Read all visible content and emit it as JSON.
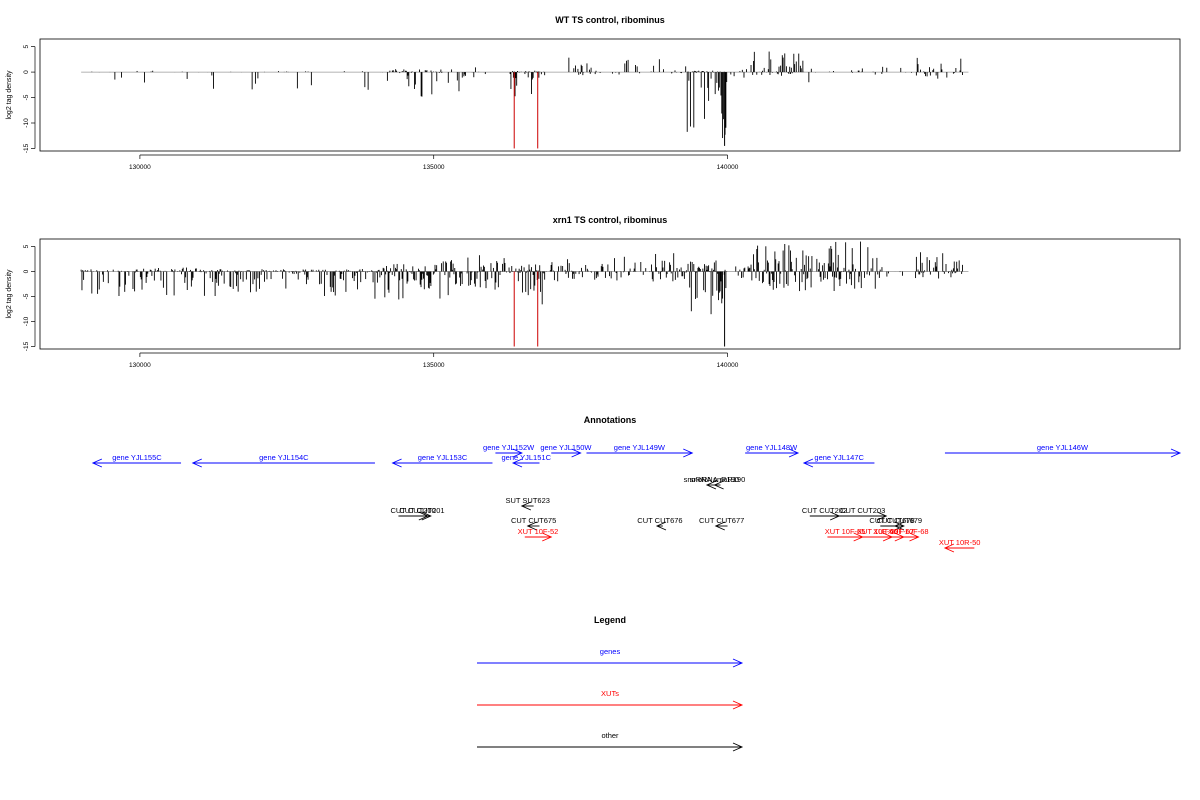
{
  "plots": [
    {
      "title": "WT TS control, ribominus",
      "ylabel": "log2 tag density",
      "xticks": [
        130000,
        135000,
        140000
      ],
      "yticks": [
        5,
        0,
        -5,
        -10,
        -15
      ],
      "ylim": [
        -15.5,
        6.5
      ],
      "xlim": [
        128300,
        147700
      ],
      "highlight_x": [
        136370,
        136770
      ],
      "regions": [
        [
          129000,
          130300,
          -4.5,
          0.3,
          0.09
        ],
        [
          130300,
          131000,
          -1.5,
          0.1,
          0.03
        ],
        [
          131000,
          134100,
          -3.5,
          0.2,
          0.12
        ],
        [
          134100,
          135500,
          -5,
          0.6,
          0.6
        ],
        [
          135500,
          135900,
          -1.5,
          1.0,
          0.3
        ],
        [
          136300,
          136900,
          -5,
          0.3,
          0.85
        ],
        [
          137300,
          139300,
          -0.6,
          3.2,
          0.3
        ],
        [
          139300,
          140000,
          -13.5,
          0.3,
          0.9
        ],
        [
          140000,
          140400,
          -1.5,
          0.6,
          0.15
        ],
        [
          140400,
          141300,
          -0.8,
          4.2,
          0.7
        ],
        [
          141300,
          142500,
          -3.5,
          0.8,
          0.2
        ],
        [
          142500,
          143200,
          -1.0,
          1.5,
          0.1
        ],
        [
          143200,
          144000,
          -1.5,
          2.8,
          0.45
        ]
      ],
      "deep_spikes": [
        [
          136370,
          -15
        ],
        [
          136770,
          -15
        ],
        [
          139950,
          -14.5
        ]
      ]
    },
    {
      "title": "xrn1 TS control, ribominus",
      "ylabel": "log2 tag density",
      "xticks": [
        130000,
        135000,
        140000
      ],
      "yticks": [
        5,
        0,
        -5,
        -10,
        -15
      ],
      "ylim": [
        -15.5,
        6.5
      ],
      "xlim": [
        128300,
        147700
      ],
      "highlight_x": [
        136370,
        136770
      ],
      "regions": [
        [
          129000,
          131000,
          -5,
          0.8,
          0.6
        ],
        [
          131000,
          134000,
          -5,
          0.5,
          0.7
        ],
        [
          134000,
          135400,
          -6,
          2.5,
          0.85
        ],
        [
          135400,
          136300,
          -4,
          3.8,
          0.6
        ],
        [
          136300,
          136900,
          -7.5,
          1.5,
          0.9
        ],
        [
          136900,
          139300,
          -2,
          4.0,
          0.6
        ],
        [
          139300,
          140000,
          -13,
          2.5,
          0.9
        ],
        [
          140000,
          140400,
          -2,
          1.5,
          0.4
        ],
        [
          140400,
          142600,
          -4,
          6.0,
          0.75
        ],
        [
          142600,
          143200,
          -1.5,
          2.0,
          0.2
        ],
        [
          143200,
          144000,
          -1.5,
          4.0,
          0.6
        ]
      ],
      "deep_spikes": [
        [
          136370,
          -15
        ],
        [
          136770,
          -15
        ],
        [
          139950,
          -15
        ]
      ]
    }
  ],
  "annotations_title": "Annotations",
  "features": [
    {
      "label": "gene YJL155C",
      "type": "gene",
      "start": 130700,
      "end": 129200,
      "row": 0
    },
    {
      "label": "gene YJL154C",
      "type": "gene",
      "start": 134000,
      "end": 130900,
      "row": 0
    },
    {
      "label": "gene YJL153C",
      "type": "gene",
      "start": 136000,
      "end": 134300,
      "row": 0
    },
    {
      "label": "gene YJL152W",
      "type": "gene",
      "start": 136050,
      "end": 136500,
      "row": -1
    },
    {
      "label": "gene YJL151C",
      "type": "gene",
      "start": 136800,
      "end": 136350,
      "row": 0
    },
    {
      "label": "gene YJL150W",
      "type": "gene",
      "start": 137000,
      "end": 137500,
      "row": -1
    },
    {
      "label": "gene YJL149W",
      "type": "gene",
      "start": 137600,
      "end": 139400,
      "row": -1
    },
    {
      "label": "gene YJL148W",
      "type": "gene",
      "start": 140300,
      "end": 141200,
      "row": -1
    },
    {
      "label": "gene YJL147C",
      "type": "gene",
      "start": 142500,
      "end": 141300,
      "row": 0
    },
    {
      "label": "gene YJL146W",
      "type": "gene",
      "start": 143700,
      "end": 147700,
      "row": -1
    },
    {
      "label": "snoRNA snR190",
      "type": "other",
      "start": 139800,
      "end": 139650,
      "row": 1
    },
    {
      "label": "snoRNA snR190",
      "type": "other",
      "start": 139880,
      "end": 139780,
      "row": 1
    },
    {
      "label": "SUT SUT623",
      "type": "other",
      "start": 136700,
      "end": 136500,
      "row": 2
    },
    {
      "label": "CUT CUT200",
      "type": "other",
      "start": 134400,
      "end": 134900,
      "row": 3
    },
    {
      "label": "CUT CUT201",
      "type": "other",
      "start": 134650,
      "end": 134950,
      "row": 3
    },
    {
      "label": "CUT CUT675",
      "type": "other",
      "start": 136800,
      "end": 136600,
      "row": 4
    },
    {
      "label": "CUT CUT676",
      "type": "other",
      "start": 138900,
      "end": 138800,
      "row": 4
    },
    {
      "label": "CUT CUT677",
      "type": "other",
      "start": 140000,
      "end": 139800,
      "row": 4
    },
    {
      "label": "CUT CUT202",
      "type": "other",
      "start": 141400,
      "end": 141900,
      "row": 3
    },
    {
      "label": "CUT CUT203",
      "type": "other",
      "start": 141900,
      "end": 142700,
      "row": 3
    },
    {
      "label": "CUT CUT678",
      "type": "other",
      "start": 142600,
      "end": 143000,
      "row": 4
    },
    {
      "label": "CUT CUT679",
      "type": "other",
      "start": 143000,
      "end": 142850,
      "row": 4
    },
    {
      "label": "XUT 10F-52",
      "type": "xut",
      "start": 136550,
      "end": 137000,
      "row": 5
    },
    {
      "label": "XUT 10F-65",
      "type": "xut",
      "start": 141700,
      "end": 142300,
      "row": 5
    },
    {
      "label": "XUT 10F-66",
      "type": "xut",
      "start": 142300,
      "end": 142800,
      "row": 5
    },
    {
      "label": "XUT 10F-67",
      "type": "xut",
      "start": 142650,
      "end": 143000,
      "row": 5
    },
    {
      "label": "XUT 10F-68",
      "type": "xut",
      "start": 142900,
      "end": 143250,
      "row": 5
    },
    {
      "label": "XUT 10R-50",
      "type": "xut",
      "start": 144200,
      "end": 143700,
      "row": 6
    }
  ],
  "legend_title": "Legend",
  "legend": [
    {
      "label": "genes",
      "type": "gene"
    },
    {
      "label": "XUTs",
      "type": "xut"
    },
    {
      "label": "other",
      "type": "other"
    }
  ],
  "colors": {
    "gene": "#0000ff",
    "xut": "#ff0000",
    "other": "#000000",
    "highlight": "#cc0000",
    "baseline": "#999999"
  },
  "chart_data": [
    {
      "type": "bar",
      "title": "WT TS control, ribominus",
      "ylabel": "log2 tag density",
      "xlim": [
        128300,
        147700
      ],
      "ylim": [
        -15.5,
        6.5
      ],
      "x_ticks": [
        130000,
        135000,
        140000
      ],
      "y_ticks": [
        5,
        0,
        -5,
        -10,
        -15
      ],
      "series": [
        {
          "values_summary": "density bars by region; deep negative dips near 136370 and 136770 (highlighted red, to -15) and ~139950 (-14.5); positive peaks ~140400-141300 up to ~4"
        }
      ]
    },
    {
      "type": "bar",
      "title": "xrn1 TS control, ribominus",
      "ylabel": "log2 tag density",
      "xlim": [
        128300,
        147700
      ],
      "ylim": [
        -15.5,
        6.5
      ],
      "x_ticks": [
        130000,
        135000,
        140000
      ],
      "y_ticks": [
        5,
        0,
        -5,
        -10,
        -15
      ],
      "series": [
        {
          "values_summary": "denser bars; dips to -15 near 136370, 136770, 139950; positive peaks ~140400-142600 up to ~6"
        }
      ]
    }
  ]
}
